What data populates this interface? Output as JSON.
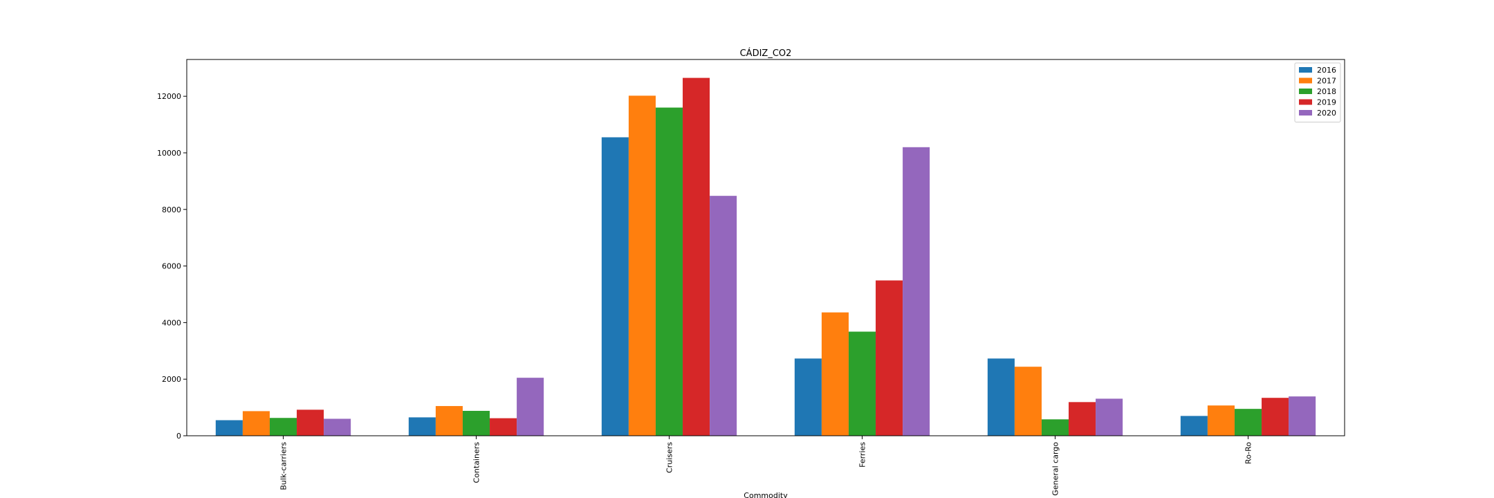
{
  "chart_data": {
    "type": "bar",
    "title": "CÁDIZ_CO2",
    "xlabel": "Commodity",
    "ylabel": "",
    "categories": [
      "Bulk-carriers",
      "Containers",
      "Cruisers",
      "Ferries",
      "General cargo",
      "Ro-Ro"
    ],
    "series": [
      {
        "name": "2016",
        "color": "#1f77b4",
        "values": [
          550,
          650,
          10550,
          2730,
          2730,
          700
        ]
      },
      {
        "name": "2017",
        "color": "#ff7f0e",
        "values": [
          870,
          1050,
          12020,
          4360,
          2440,
          1070
        ]
      },
      {
        "name": "2018",
        "color": "#2ca02c",
        "values": [
          630,
          880,
          11600,
          3680,
          580,
          950
        ]
      },
      {
        "name": "2019",
        "color": "#d62728",
        "values": [
          920,
          620,
          12650,
          5490,
          1190,
          1340
        ]
      },
      {
        "name": "2020",
        "color": "#9467bd",
        "values": [
          600,
          2050,
          8480,
          10200,
          1310,
          1390
        ]
      }
    ],
    "ylim": [
      0,
      13300
    ],
    "yticks": [
      0,
      2000,
      4000,
      6000,
      8000,
      10000,
      12000
    ],
    "ytick_labels": [
      "0",
      "2000",
      "4000",
      "6000",
      "8000",
      "10000",
      "12000"
    ],
    "grid": false,
    "legend_position": "upper right"
  }
}
